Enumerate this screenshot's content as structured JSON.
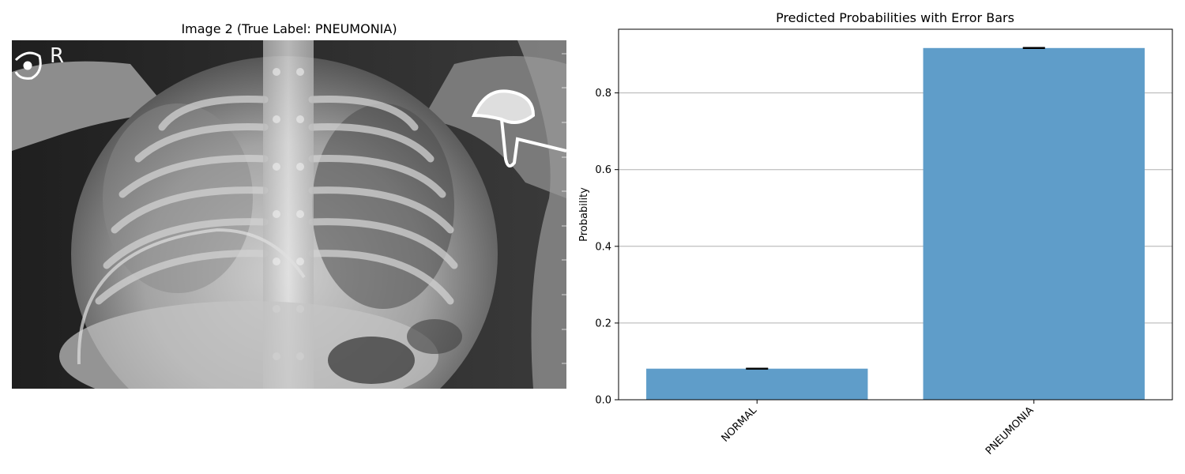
{
  "left_panel": {
    "title": "Image 2 (True Label: PNEUMONIA)",
    "marker": "R"
  },
  "chart_data": {
    "type": "bar",
    "title": "Predicted Probabilities with Error Bars",
    "xlabel": "",
    "ylabel": "Probability",
    "categories": [
      "NORMAL",
      "PNEUMONIA"
    ],
    "values": [
      0.081,
      0.917
    ],
    "errors": [
      0.001,
      0.001
    ],
    "ylim": [
      0,
      0.966
    ],
    "yticks": [
      0.0,
      0.2,
      0.4,
      0.6,
      0.8
    ],
    "ytick_labels": [
      "0.0",
      "0.2",
      "0.4",
      "0.6",
      "0.8"
    ],
    "grid_y": true,
    "bar_color": "#5f9dc9",
    "error_color": "#000000"
  }
}
